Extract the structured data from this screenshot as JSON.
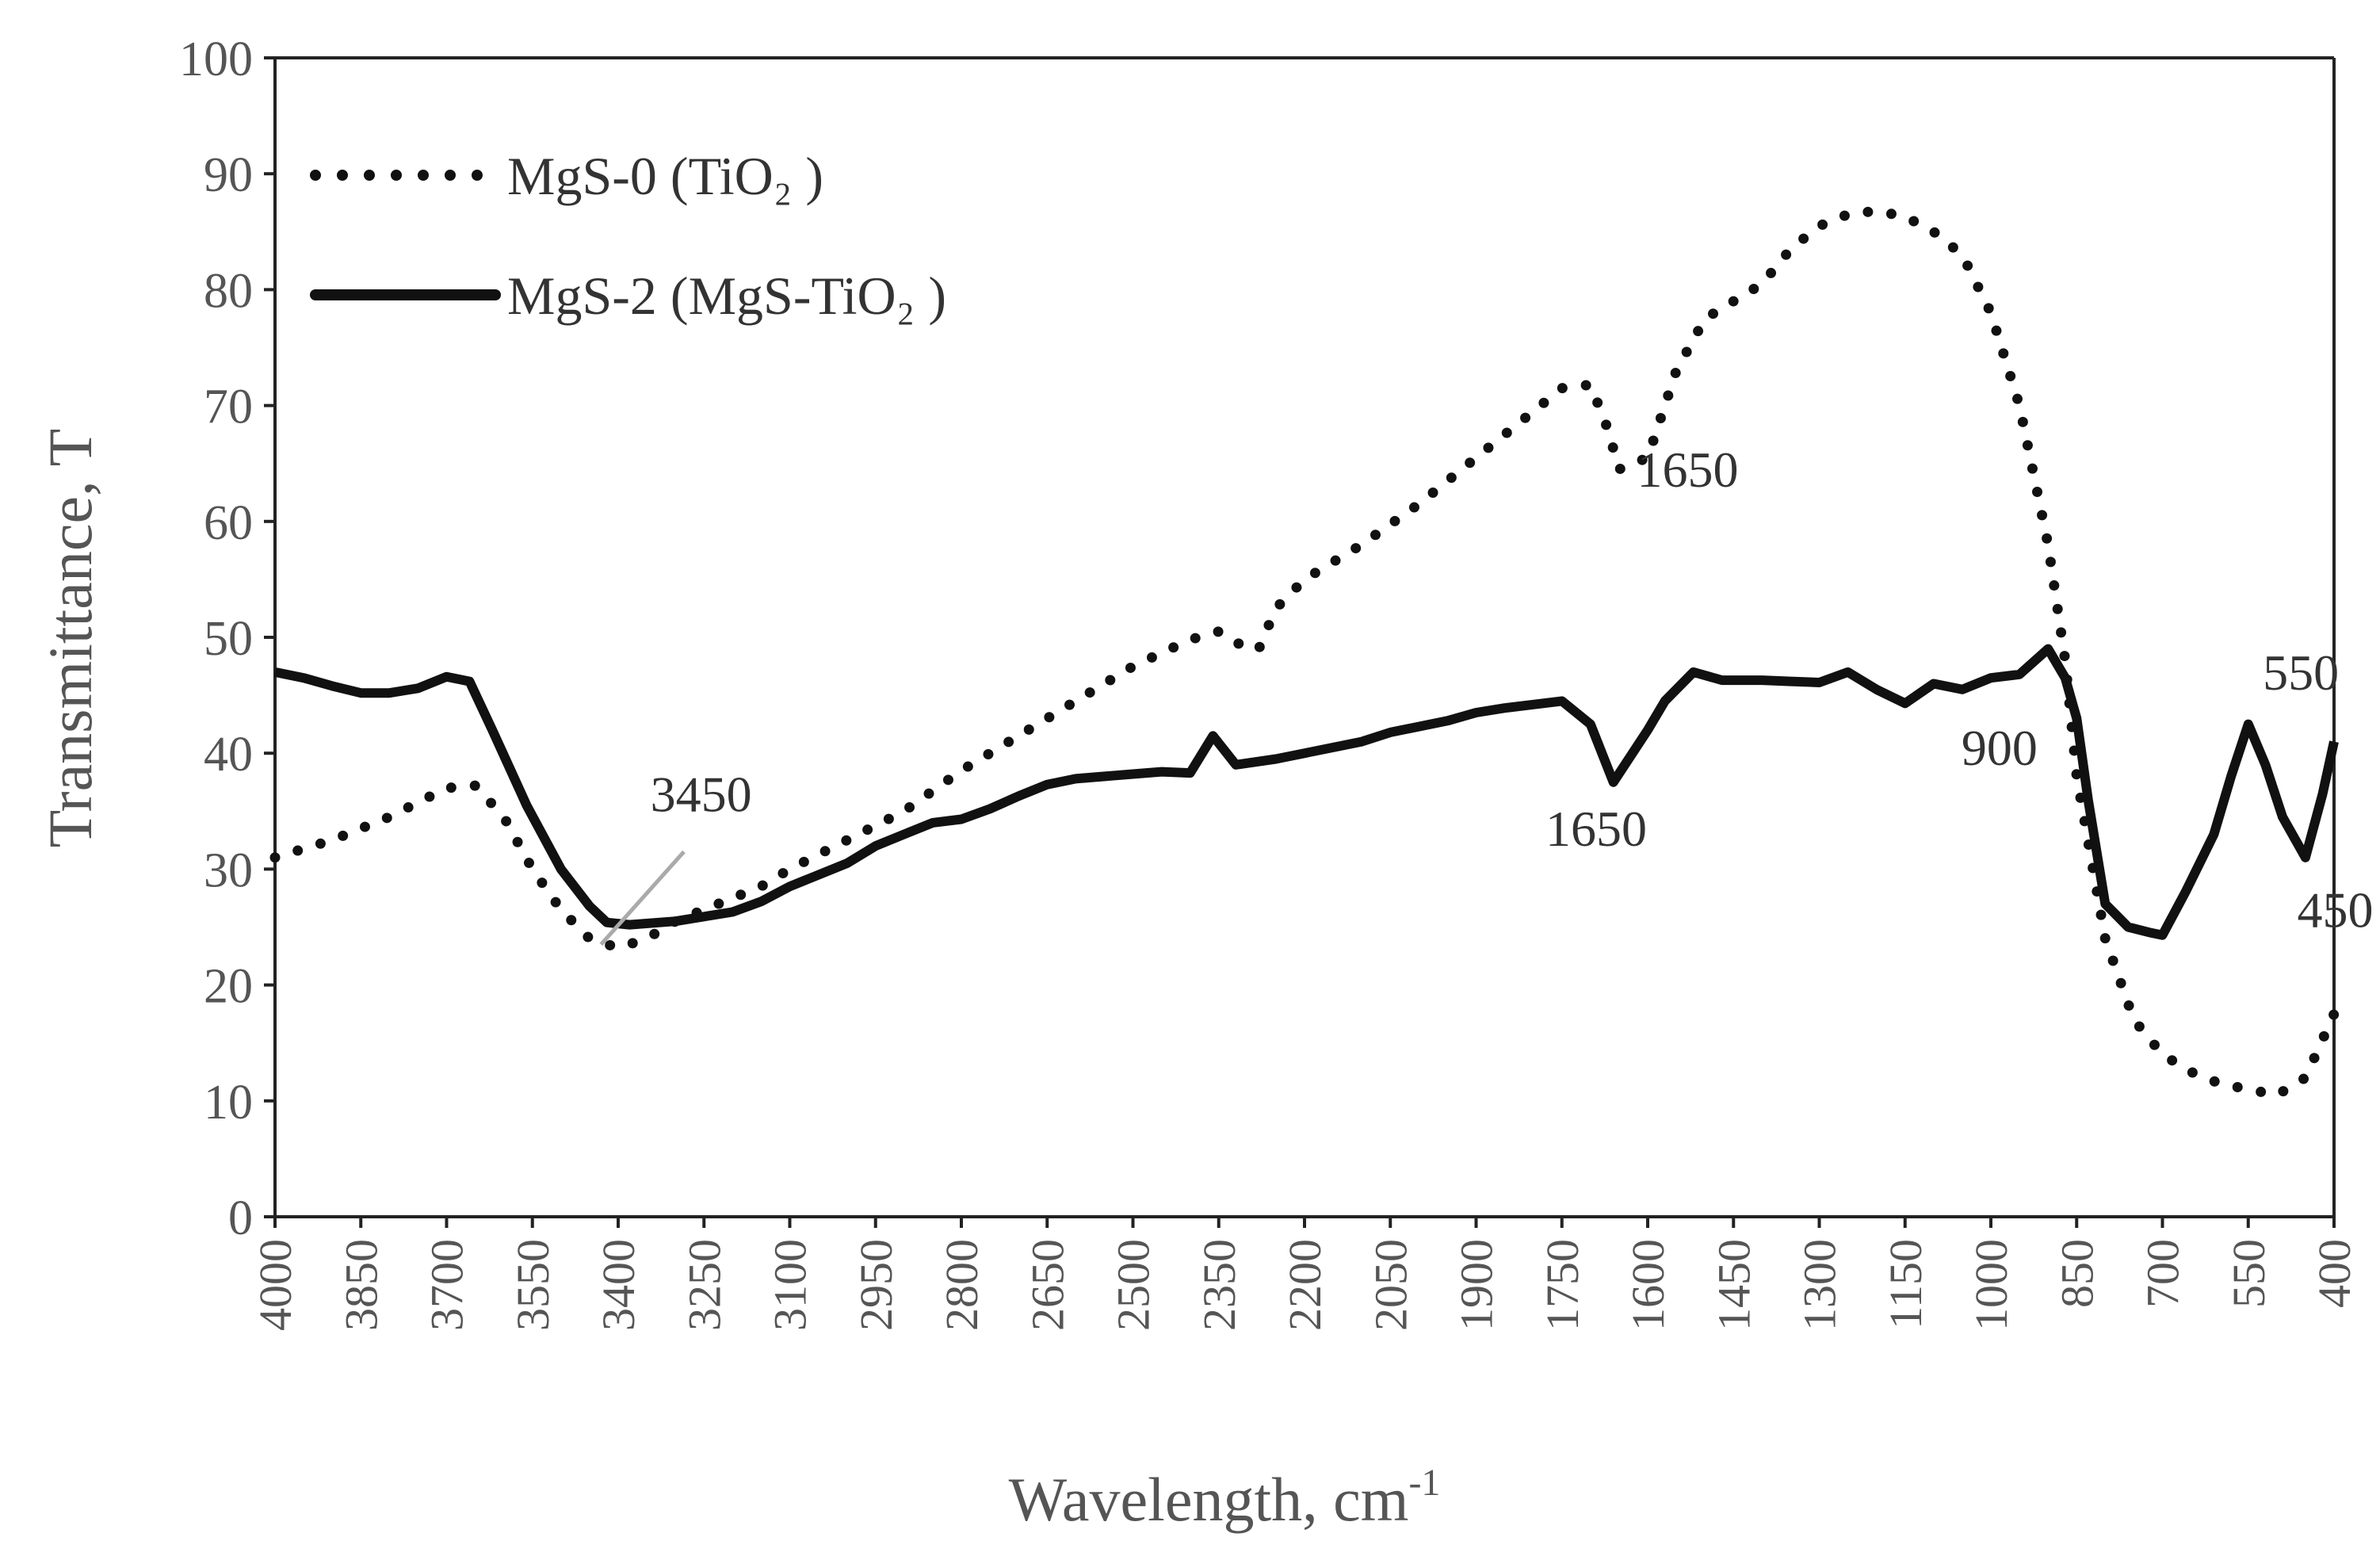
{
  "chart_data": {
    "type": "line",
    "title": "",
    "xlabel": "Wavelength, cm",
    "xlabel_superscript": "-1",
    "ylabel": "Transmittance, T",
    "xlim": [
      4000,
      400
    ],
    "ylim": [
      0,
      100
    ],
    "x_reversed": true,
    "grid": false,
    "legend_position": "top-left",
    "y_ticks": [
      "0",
      "10",
      "20",
      "30",
      "40",
      "50",
      "60",
      "70",
      "80",
      "90",
      "100"
    ],
    "x_ticks": [
      "4000",
      "3850",
      "3700",
      "3550",
      "3400",
      "3250",
      "3100",
      "2950",
      "2800",
      "2650",
      "2500",
      "2350",
      "2200",
      "2050",
      "1900",
      "1750",
      "1600",
      "1450",
      "1300",
      "1150",
      "1000",
      "850",
      "700",
      "550",
      "400"
    ],
    "series": [
      {
        "name": "MgS-0 (TiO₂ )",
        "style": "dotted",
        "color": "#111111",
        "points": [
          [
            4000,
            31.0
          ],
          [
            3900,
            32.5
          ],
          [
            3800,
            34.5
          ],
          [
            3700,
            37.0
          ],
          [
            3650,
            37.2
          ],
          [
            3600,
            34.5
          ],
          [
            3550,
            30.0
          ],
          [
            3500,
            26.5
          ],
          [
            3450,
            24.0
          ],
          [
            3400,
            23.2
          ],
          [
            3350,
            24.0
          ],
          [
            3300,
            25.5
          ],
          [
            3250,
            26.5
          ],
          [
            3200,
            27.5
          ],
          [
            3150,
            28.5
          ],
          [
            3100,
            30.0
          ],
          [
            3000,
            32.5
          ],
          [
            2900,
            35.0
          ],
          [
            2800,
            38.5
          ],
          [
            2700,
            41.5
          ],
          [
            2600,
            44.5
          ],
          [
            2500,
            47.5
          ],
          [
            2400,
            49.8
          ],
          [
            2350,
            50.5
          ],
          [
            2300,
            49.0
          ],
          [
            2280,
            49.0
          ],
          [
            2250,
            52.5
          ],
          [
            2200,
            55.0
          ],
          [
            2100,
            58.0
          ],
          [
            2000,
            61.5
          ],
          [
            1900,
            65.5
          ],
          [
            1800,
            69.5
          ],
          [
            1750,
            71.5
          ],
          [
            1700,
            71.8
          ],
          [
            1670,
            68.0
          ],
          [
            1650,
            64.5
          ],
          [
            1600,
            65.5
          ],
          [
            1550,
            73.0
          ],
          [
            1500,
            77.5
          ],
          [
            1450,
            79.0
          ],
          [
            1400,
            80.5
          ],
          [
            1350,
            83.5
          ],
          [
            1300,
            85.5
          ],
          [
            1250,
            86.5
          ],
          [
            1200,
            86.8
          ],
          [
            1150,
            86.3
          ],
          [
            1100,
            85.0
          ],
          [
            1050,
            83.0
          ],
          [
            1000,
            78.0
          ],
          [
            950,
            70.0
          ],
          [
            900,
            58.0
          ],
          [
            870,
            48.0
          ],
          [
            850,
            38.0
          ],
          [
            800,
            24.0
          ],
          [
            750,
            17.0
          ],
          [
            700,
            14.0
          ],
          [
            650,
            12.5
          ],
          [
            600,
            11.5
          ],
          [
            550,
            11.0
          ],
          [
            500,
            10.5
          ],
          [
            450,
            12.0
          ],
          [
            400,
            17.5
          ]
        ]
      },
      {
        "name": "MgS-2 (MgS-TiO₂ )",
        "style": "solid",
        "color": "#111111",
        "points": [
          [
            4000,
            47.0
          ],
          [
            3950,
            46.5
          ],
          [
            3900,
            45.8
          ],
          [
            3850,
            45.2
          ],
          [
            3800,
            45.2
          ],
          [
            3750,
            45.6
          ],
          [
            3700,
            46.6
          ],
          [
            3660,
            46.2
          ],
          [
            3620,
            42.0
          ],
          [
            3560,
            35.5
          ],
          [
            3500,
            30.0
          ],
          [
            3450,
            26.8
          ],
          [
            3420,
            25.4
          ],
          [
            3380,
            25.2
          ],
          [
            3300,
            25.5
          ],
          [
            3200,
            26.3
          ],
          [
            3150,
            27.2
          ],
          [
            3100,
            28.5
          ],
          [
            3000,
            30.5
          ],
          [
            2950,
            32.0
          ],
          [
            2900,
            33.0
          ],
          [
            2850,
            34.0
          ],
          [
            2800,
            34.3
          ],
          [
            2750,
            35.2
          ],
          [
            2700,
            36.3
          ],
          [
            2650,
            37.3
          ],
          [
            2600,
            37.8
          ],
          [
            2500,
            38.2
          ],
          [
            2450,
            38.4
          ],
          [
            2400,
            38.3
          ],
          [
            2360,
            41.5
          ],
          [
            2320,
            39.0
          ],
          [
            2250,
            39.5
          ],
          [
            2200,
            40.0
          ],
          [
            2100,
            41.0
          ],
          [
            2050,
            41.8
          ],
          [
            1950,
            42.8
          ],
          [
            1900,
            43.5
          ],
          [
            1850,
            43.9
          ],
          [
            1800,
            44.2
          ],
          [
            1750,
            44.5
          ],
          [
            1700,
            42.5
          ],
          [
            1660,
            37.5
          ],
          [
            1600,
            42.0
          ],
          [
            1570,
            44.5
          ],
          [
            1520,
            47.0
          ],
          [
            1470,
            46.3
          ],
          [
            1400,
            46.3
          ],
          [
            1350,
            46.2
          ],
          [
            1300,
            46.1
          ],
          [
            1250,
            47.0
          ],
          [
            1200,
            45.5
          ],
          [
            1150,
            44.3
          ],
          [
            1100,
            46.0
          ],
          [
            1050,
            45.5
          ],
          [
            1000,
            46.5
          ],
          [
            950,
            46.8
          ],
          [
            900,
            49.0
          ],
          [
            870,
            46.5
          ],
          [
            850,
            43.0
          ],
          [
            830,
            36.0
          ],
          [
            800,
            27.0
          ],
          [
            760,
            25.0
          ],
          [
            720,
            24.5
          ],
          [
            700,
            24.3
          ],
          [
            660,
            28.0
          ],
          [
            610,
            33.0
          ],
          [
            580,
            38.0
          ],
          [
            550,
            42.5
          ],
          [
            520,
            39.0
          ],
          [
            490,
            34.5
          ],
          [
            450,
            31.0
          ],
          [
            420,
            36.5
          ],
          [
            400,
            41.0
          ]
        ]
      }
    ],
    "annotations": [
      {
        "text": "1650",
        "x": 1530,
        "y": 63.0
      },
      {
        "text": "3450",
        "x": 3255,
        "y": 35.0
      },
      {
        "text": "1650",
        "x": 1690,
        "y": 32.0
      },
      {
        "text": "900",
        "x": 985,
        "y": 39.0
      },
      {
        "text": "550",
        "x": 458,
        "y": 45.5
      },
      {
        "text": "450",
        "x": 398,
        "y": 25.0
      }
    ],
    "leader_line": {
      "from": [
        3430,
        23.5
      ],
      "to": [
        3285,
        31.5
      ]
    }
  }
}
